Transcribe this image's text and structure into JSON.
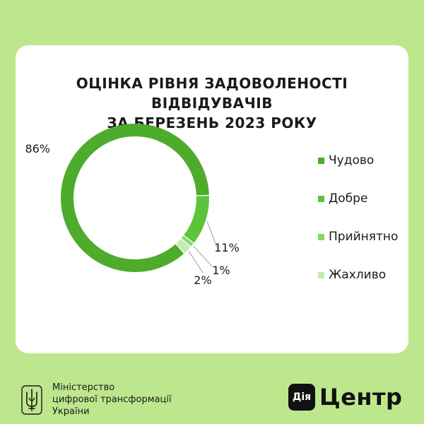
{
  "colors": {
    "background": "#bde78d",
    "card": "#ffffff"
  },
  "chart_data": {
    "type": "pie",
    "title": "ОЦІНКА РІВНЯ ЗАДОВОЛЕНОСТІ ВІДВІДУВАЧІВ ЗА БЕРЕЗЕНЬ 2023 РОКУ",
    "title_lines": [
      "ОЦІНКА РІВНЯ ЗАДОВОЛЕНОСТІ ВІДВІДУВАЧІВ",
      "ЗА БЕРЕЗЕНЬ 2023 РОКУ"
    ],
    "categories": [
      "Чудово",
      "Добре",
      "Прийнятно",
      "Жахливо"
    ],
    "values": [
      86,
      11,
      1,
      2
    ],
    "value_labels": [
      "86%",
      "11%",
      "1%",
      "2%"
    ],
    "colors": [
      "#4eac2c",
      "#5cc43a",
      "#86d96a",
      "#c4ecb0"
    ],
    "donut": true,
    "legend_position": "right"
  },
  "footer": {
    "ministry_lines": [
      "Міністерство",
      "цифрової трансформації",
      "України"
    ],
    "emblem_icon": "trident-emblem-icon",
    "brand_logo_text": "Дія",
    "brand_name": "Центр"
  }
}
